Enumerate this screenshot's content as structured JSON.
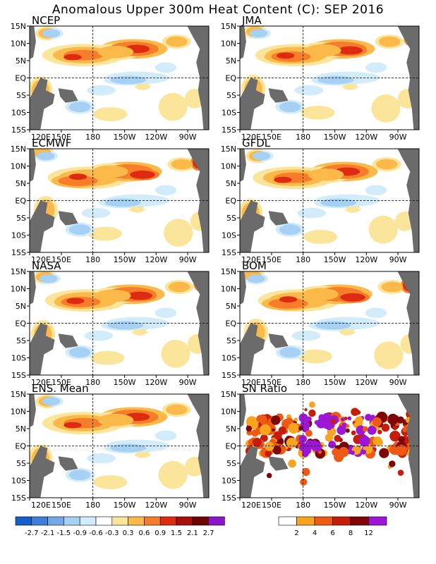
{
  "title": "Anomalous Upper 300m Heat Content (C): SEP 2016",
  "lon_labels": [
    "120E",
    "150E",
    "180",
    "150W",
    "120W",
    "90W"
  ],
  "lat_labels": [
    "15N",
    "10N",
    "5N",
    "EQ",
    "5S",
    "10S",
    "15S"
  ],
  "panels": [
    "NCEP",
    "JMA",
    "ECMWF",
    "GFDL",
    "NASA",
    "BOM",
    "ENS. Mean",
    "SN Ratio"
  ],
  "colorbar_anomaly": {
    "labels": [
      "-2.7",
      "-2.1",
      "-1.5",
      "-0.9",
      "-0.6",
      "-0.3",
      "0.3",
      "0.6",
      "0.9",
      "1.5",
      "2.1",
      "2.7"
    ],
    "colors": [
      "#1560c8",
      "#3f7fd6",
      "#74a7e8",
      "#a7d0f5",
      "#d2ecfb",
      "#ffffff",
      "#fbe59a",
      "#fbb94a",
      "#f67d2a",
      "#dd2a10",
      "#a80e0a",
      "#6e0404",
      "#8a15c9"
    ]
  },
  "colorbar_snr": {
    "labels": [
      "2",
      "4",
      "6",
      "8",
      "12"
    ],
    "colors": [
      "#ffffff",
      "#f7a51f",
      "#ee5a14",
      "#c81c0a",
      "#7e0606",
      "#9d16d6"
    ]
  },
  "colors": {
    "land": "#6b6b6b",
    "frame": "#000000"
  },
  "chart_data": [
    {
      "type": "heatmap",
      "title": "NCEP",
      "xlim": [
        "120E",
        "70W"
      ],
      "ylim": [
        "15S",
        "15N"
      ]
    },
    {
      "type": "heatmap",
      "title": "JMA",
      "xlim": [
        "120E",
        "70W"
      ],
      "ylim": [
        "15S",
        "15N"
      ]
    },
    {
      "type": "heatmap",
      "title": "ECMWF",
      "xlim": [
        "120E",
        "70W"
      ],
      "ylim": [
        "15S",
        "15N"
      ]
    },
    {
      "type": "heatmap",
      "title": "GFDL",
      "xlim": [
        "120E",
        "70W"
      ],
      "ylim": [
        "15S",
        "15N"
      ]
    },
    {
      "type": "heatmap",
      "title": "NASA",
      "xlim": [
        "120E",
        "70W"
      ],
      "ylim": [
        "15S",
        "15N"
      ]
    },
    {
      "type": "heatmap",
      "title": "BOM",
      "xlim": [
        "120E",
        "70W"
      ],
      "ylim": [
        "15S",
        "15N"
      ]
    },
    {
      "type": "heatmap",
      "title": "ENS. Mean",
      "xlim": [
        "120E",
        "70W"
      ],
      "ylim": [
        "15S",
        "15N"
      ]
    },
    {
      "type": "heatmap",
      "title": "SN Ratio",
      "xlim": [
        "120E",
        "70W"
      ],
      "ylim": [
        "15S",
        "15N"
      ]
    }
  ]
}
